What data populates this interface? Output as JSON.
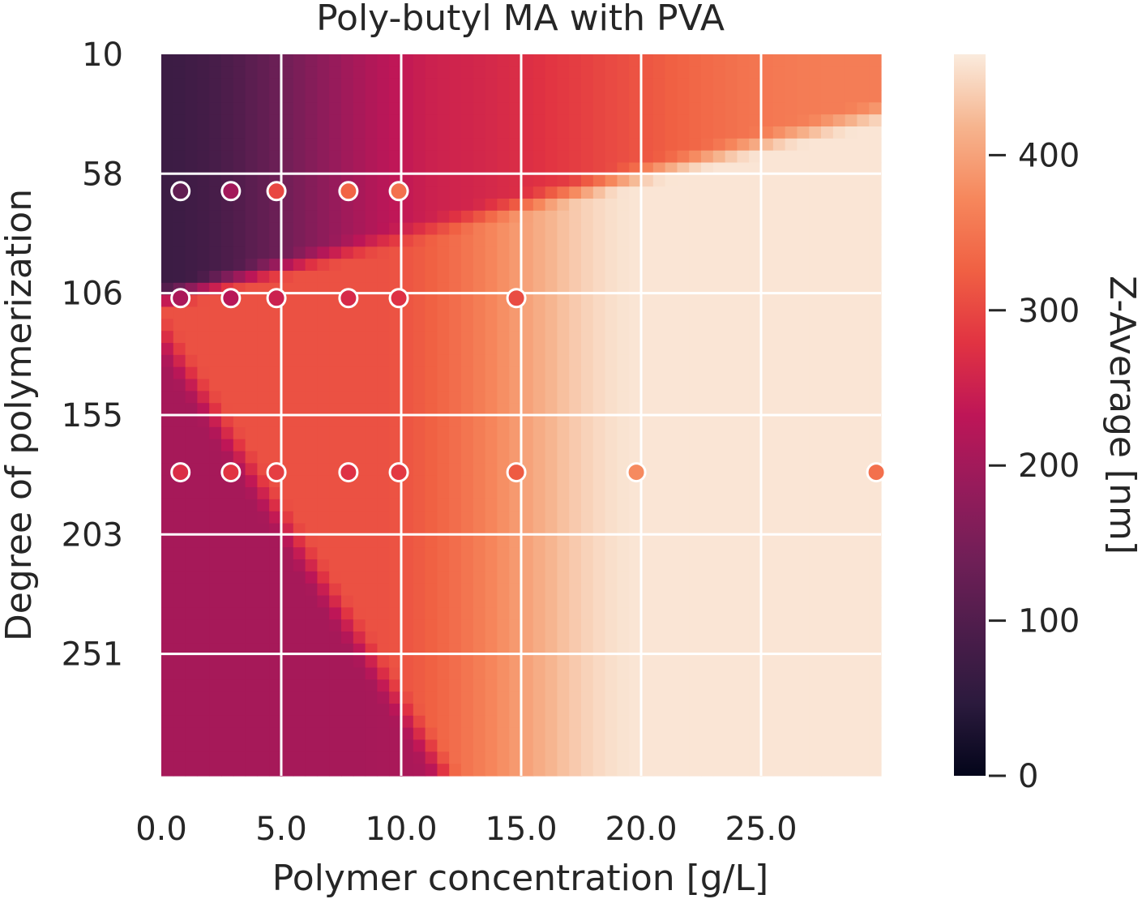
{
  "chart_data": {
    "type": "heatmap",
    "title": "Poly-butyl MA with PVA",
    "xlabel": "Polymer concentration [g/L]",
    "ylabel": "Degree of polymerization",
    "colorbar_label": "Z-Average [nm]",
    "xlim": [
      0,
      30
    ],
    "ylim": [
      10,
      300
    ],
    "y_inverted": true,
    "x_ticks": [
      0.0,
      5.0,
      10.0,
      15.0,
      20.0,
      25.0
    ],
    "x_tick_labels": [
      "0.0",
      "5.0",
      "10.0",
      "15.0",
      "20.0",
      "25.0"
    ],
    "y_ticks": [
      10,
      58,
      106,
      155,
      203,
      251
    ],
    "y_tick_labels": [
      "10",
      "58",
      "106",
      "155",
      "203",
      "251"
    ],
    "clim": [
      0,
      465
    ],
    "colorbar_ticks": [
      0,
      100,
      200,
      300,
      400
    ],
    "colorbar_tick_labels": [
      "0",
      "100",
      "200",
      "300",
      "400"
    ],
    "grid": true,
    "colormap": "rocket",
    "points": [
      {
        "x": 0.8,
        "y": 65,
        "z": 120
      },
      {
        "x": 2.9,
        "y": 65,
        "z": 200
      },
      {
        "x": 4.8,
        "y": 65,
        "z": 300
      },
      {
        "x": 7.8,
        "y": 65,
        "z": 330
      },
      {
        "x": 9.9,
        "y": 65,
        "z": 345
      },
      {
        "x": 0.8,
        "y": 108,
        "z": 210
      },
      {
        "x": 2.9,
        "y": 108,
        "z": 225
      },
      {
        "x": 4.8,
        "y": 108,
        "z": 250
      },
      {
        "x": 7.8,
        "y": 108,
        "z": 265
      },
      {
        "x": 9.9,
        "y": 108,
        "z": 275
      },
      {
        "x": 14.8,
        "y": 108,
        "z": 305
      },
      {
        "x": 0.8,
        "y": 178,
        "z": 270
      },
      {
        "x": 2.9,
        "y": 178,
        "z": 280
      },
      {
        "x": 4.8,
        "y": 178,
        "z": 290
      },
      {
        "x": 7.8,
        "y": 178,
        "z": 275
      },
      {
        "x": 9.9,
        "y": 178,
        "z": 285
      },
      {
        "x": 14.8,
        "y": 178,
        "z": 320
      },
      {
        "x": 19.8,
        "y": 178,
        "z": 375
      },
      {
        "x": 29.8,
        "y": 178,
        "z": 345
      }
    ]
  }
}
